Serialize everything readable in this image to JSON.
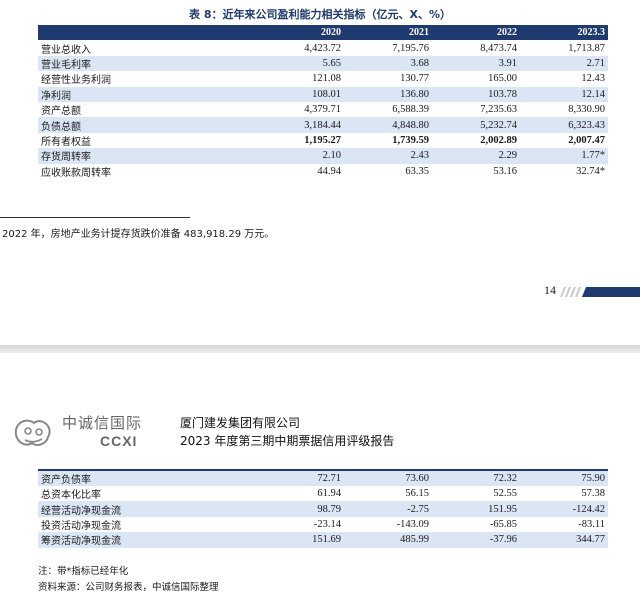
{
  "top_table": {
    "title": "表 8：近年来公司盈利能力相关指标（亿元、X、%）",
    "columns": [
      "2020",
      "2021",
      "2022",
      "2023.3"
    ],
    "rows": [
      {
        "label": "营业总收入",
        "values": [
          "4,423.72",
          "7,195.76",
          "8,473.74",
          "1,713.87"
        ]
      },
      {
        "label": "营业毛利率",
        "values": [
          "5.65",
          "3.68",
          "3.91",
          "2.71"
        ]
      },
      {
        "label": "经营性业务利润",
        "values": [
          "121.08",
          "130.77",
          "165.00",
          "12.43"
        ]
      },
      {
        "label": "净利润",
        "values": [
          "108.01",
          "136.80",
          "103.78",
          "12.14"
        ]
      },
      {
        "label": "资产总额",
        "values": [
          "4,379.71",
          "6,588.39",
          "7,235.63",
          "8,330.90"
        ]
      },
      {
        "label": "负债总额",
        "values": [
          "3,184.44",
          "4,848.80",
          "5,232.74",
          "6,323.43"
        ]
      },
      {
        "label": "所有者权益",
        "values": [
          "1,195.27",
          "1,739.59",
          "2,002.89",
          "2,007.47"
        ]
      },
      {
        "label": "存货周转率",
        "values": [
          "2.10",
          "2.43",
          "2.29",
          "1.77*"
        ]
      },
      {
        "label": "应收账款周转率",
        "values": [
          "44.94",
          "63.35",
          "53.16",
          "32.74*"
        ]
      }
    ]
  },
  "footnote": "2022 年，房地产业务计提存货跌价准备 483,918.29 万元。",
  "page_number": "14",
  "header": {
    "logo_cn": "中诚信国际",
    "logo_en": "CCXI",
    "company": "厦门建发集团有限公司",
    "report_title": "2023 年度第三期中期票据信用评级报告"
  },
  "bottom_table": {
    "rows": [
      {
        "label": "资产负债率",
        "values": [
          "72.71",
          "73.60",
          "72.32",
          "75.90"
        ]
      },
      {
        "label": "总资本化比率",
        "values": [
          "61.94",
          "56.15",
          "52.55",
          "57.38"
        ]
      },
      {
        "label": "经营活动净现金流",
        "values": [
          "98.79",
          "-2.75",
          "151.95",
          "-124.42"
        ]
      },
      {
        "label": "投资活动净现金流",
        "values": [
          "-23.14",
          "-143.09",
          "-65.85",
          "-83.11"
        ]
      },
      {
        "label": "筹资活动净现金流",
        "values": [
          "151.69",
          "485.99",
          "-37.96",
          "344.77"
        ]
      }
    ]
  },
  "notes": {
    "note": "注：带*指标已经年化",
    "source": "资料来源：公司财务报表，中诚信国际整理"
  },
  "colors": {
    "header_blue": "#1f3a6e",
    "row_tint": "#dbe6f4"
  }
}
